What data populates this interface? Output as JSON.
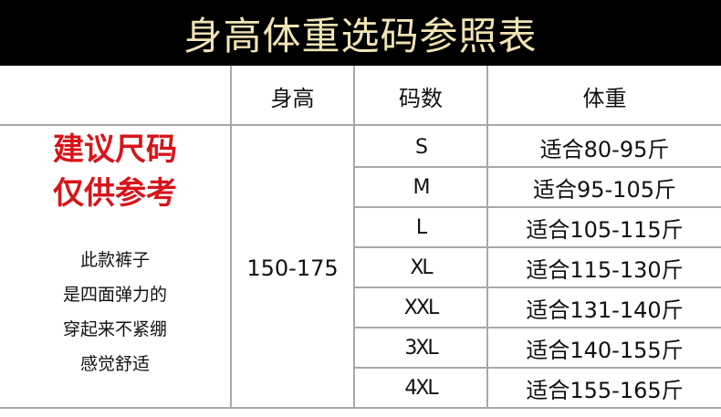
{
  "title": "身高体重选码参照表",
  "headers": {
    "height": "身高",
    "size": "码数",
    "weight": "体重"
  },
  "height_range": "150-175",
  "advice": {
    "lines": [
      "建议尺码",
      "仅供参考"
    ],
    "color": "#d8141b"
  },
  "note_lines": [
    "此款裤子",
    "是四面弹力的",
    "穿起来不紧绷",
    "感觉舒适"
  ],
  "rows": [
    {
      "size": "S",
      "weight": "适合80-95斤"
    },
    {
      "size": "M",
      "weight": "适合95-105斤"
    },
    {
      "size": "L",
      "weight": "适合105-115斤"
    },
    {
      "size": "XL",
      "weight": "适合115-130斤"
    },
    {
      "size": "XXL",
      "weight": "适合131-140斤"
    },
    {
      "size": "3XL",
      "weight": "适合140-155斤"
    },
    {
      "size": "4XL",
      "weight": "适合155-165斤"
    }
  ],
  "colors": {
    "banner_bg": "#000000",
    "banner_text": "#f1e3b4"
  }
}
